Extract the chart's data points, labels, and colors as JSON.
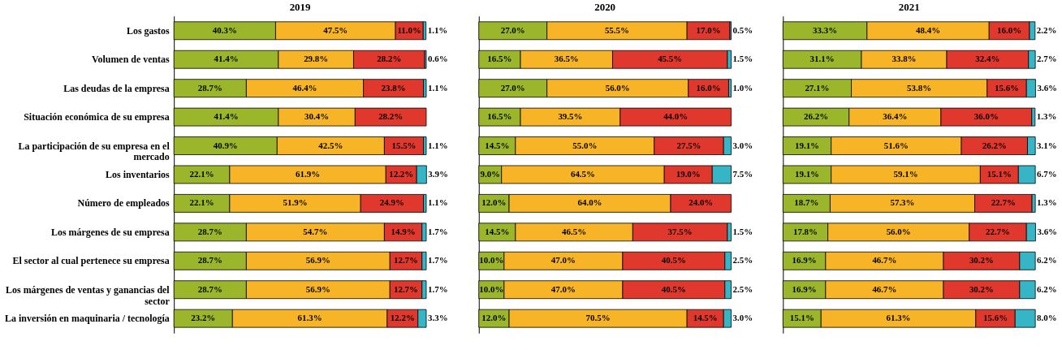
{
  "chart_data": [
    {
      "type": "bar",
      "title": "2019",
      "orientation": "horizontal",
      "stacked": true,
      "xlim": [
        0,
        100
      ],
      "tick_labels": "y",
      "categories": [
        "Los gastos",
        "Volumen de ventas",
        "Las deudas de la empresa",
        "Situación económica de su empresa",
        "La participación de su empresa en el mercado",
        "Los inventarios",
        "Número de empleados",
        "Los márgenes de su empresa",
        "El sector al cual pertenece su empresa",
        "Los márgenes de ventas y ganancias del sector",
        "La inversión en maquinaria / tecnología"
      ],
      "series": [
        {
          "color": "#9bb62b",
          "values": [
            40.3,
            41.4,
            28.7,
            41.4,
            40.9,
            22.1,
            22.1,
            28.7,
            28.7,
            28.7,
            23.2
          ],
          "value_labels": [
            "40.3%",
            "41.4%",
            "28.7%",
            "41.4%",
            "40.9%",
            "22.1%",
            "22.1%",
            "28.7%",
            "28.7%",
            "28.7%",
            "23.2%"
          ]
        },
        {
          "color": "#f6b426",
          "values": [
            47.5,
            29.8,
            46.4,
            30.4,
            42.5,
            61.9,
            51.9,
            54.7,
            56.9,
            56.9,
            61.3
          ],
          "value_labels": [
            "47.5%",
            "29.8%",
            "46.4%",
            "30.4%",
            "42.5%",
            "61.9%",
            "51.9%",
            "54.7%",
            "56.9%",
            "56.9%",
            "61.3%"
          ]
        },
        {
          "color": "#e0382d",
          "values": [
            11.0,
            28.2,
            23.8,
            28.2,
            15.5,
            12.2,
            24.9,
            14.9,
            12.7,
            12.7,
            12.2
          ],
          "value_labels": [
            "11.0%",
            "28.2%",
            "23.8%",
            "28.2%",
            "15.5%",
            "12.2%",
            "24.9%",
            "14.9%",
            "12.7%",
            "12.7%",
            "12.2%"
          ]
        },
        {
          "color": "#35b5c6",
          "values": [
            1.1,
            0.6,
            1.1,
            null,
            1.1,
            3.9,
            1.1,
            1.7,
            1.7,
            1.7,
            3.3
          ],
          "value_labels": [
            "1.1%",
            "0.6%",
            "1.1%",
            null,
            "1.1%",
            "3.9%",
            "1.1%",
            "1.7%",
            "1.7%",
            "1.7%",
            "3.3%"
          ]
        }
      ]
    },
    {
      "type": "bar",
      "title": "2020",
      "orientation": "horizontal",
      "stacked": true,
      "xlim": [
        0,
        100
      ],
      "tick_labels": false,
      "categories": [
        null,
        null,
        null,
        null,
        null,
        null,
        null,
        null,
        null,
        null,
        null
      ],
      "series": [
        {
          "color": "#9bb62b",
          "values": [
            27.0,
            16.5,
            27.0,
            16.5,
            14.5,
            9.0,
            12.0,
            14.5,
            10.0,
            10.0,
            12.0
          ],
          "value_labels": [
            "27.0%",
            "16.5%",
            "27.0%",
            "16.5%",
            "14.5%",
            "9.0%",
            "12.0%",
            "14.5%",
            "10.0%",
            "10.0%",
            "12.0%"
          ]
        },
        {
          "color": "#f6b426",
          "values": [
            55.5,
            36.5,
            56.0,
            39.5,
            55.0,
            64.5,
            64.0,
            46.5,
            47.0,
            47.0,
            70.5
          ],
          "value_labels": [
            "55.5%",
            "36.5%",
            "56.0%",
            "39.5%",
            "55.0%",
            "64.5%",
            "64.0%",
            "46.5%",
            "47.0%",
            "47.0%",
            "70.5%"
          ]
        },
        {
          "color": "#e0382d",
          "values": [
            17.0,
            45.5,
            16.0,
            44.0,
            27.5,
            19.0,
            24.0,
            37.5,
            40.5,
            40.5,
            14.5
          ],
          "value_labels": [
            "17.0%",
            "45.5%",
            "16.0%",
            "44.0%",
            "27.5%",
            "19.0%",
            "24.0%",
            "37.5%",
            "40.5%",
            "40.5%",
            "14.5%"
          ]
        },
        {
          "color": "#35b5c6",
          "values": [
            0.5,
            1.5,
            1.0,
            null,
            3.0,
            7.5,
            null,
            1.5,
            2.5,
            2.5,
            3.0
          ],
          "value_labels": [
            "0.5%",
            "1.5%",
            "1.0%",
            null,
            "3.0%",
            "7.5%",
            null,
            "1.5%",
            "2.5%",
            "2.5%",
            "3.0%"
          ]
        }
      ]
    },
    {
      "type": "bar",
      "title": "2021",
      "orientation": "horizontal",
      "stacked": true,
      "xlim": [
        0,
        100
      ],
      "tick_labels": false,
      "categories": [
        null,
        null,
        null,
        null,
        null,
        null,
        null,
        null,
        null,
        null,
        null
      ],
      "series": [
        {
          "color": "#9bb62b",
          "values": [
            33.3,
            31.1,
            27.1,
            26.2,
            19.1,
            19.1,
            18.7,
            17.8,
            16.9,
            16.9,
            15.1
          ],
          "value_labels": [
            "33.3%",
            "31.1%",
            "27.1%",
            "26.2%",
            "19.1%",
            "19.1%",
            "18.7%",
            "17.8%",
            "16.9%",
            "16.9%",
            "15.1%"
          ]
        },
        {
          "color": "#f6b426",
          "values": [
            48.4,
            33.8,
            53.8,
            36.4,
            51.6,
            59.1,
            57.3,
            56.0,
            46.7,
            46.7,
            61.3
          ],
          "value_labels": [
            "48.4%",
            "33.8%",
            "53.8%",
            "36.4%",
            "51.6%",
            "59.1%",
            "57.3%",
            "56.0%",
            "46.7%",
            "46.7%",
            "61.3%"
          ]
        },
        {
          "color": "#e0382d",
          "values": [
            16.0,
            32.4,
            15.6,
            36.0,
            26.2,
            15.1,
            22.7,
            22.7,
            30.2,
            30.2,
            15.6
          ],
          "value_labels": [
            "16.0%",
            "32.4%",
            "15.6%",
            "36.0%",
            "26.2%",
            "15.1%",
            "22.7%",
            "22.7%",
            "30.2%",
            "30.2%",
            "15.6%"
          ]
        },
        {
          "color": "#35b5c6",
          "values": [
            2.2,
            2.7,
            3.6,
            1.3,
            3.1,
            6.7,
            1.3,
            3.6,
            6.2,
            6.2,
            8.0
          ],
          "value_labels": [
            "2.2%",
            "2.7%",
            "3.6%",
            "1.3%",
            "3.1%",
            "6.7%",
            "1.3%",
            "3.6%",
            "6.2%",
            "6.2%",
            "8.0%"
          ]
        }
      ]
    }
  ]
}
